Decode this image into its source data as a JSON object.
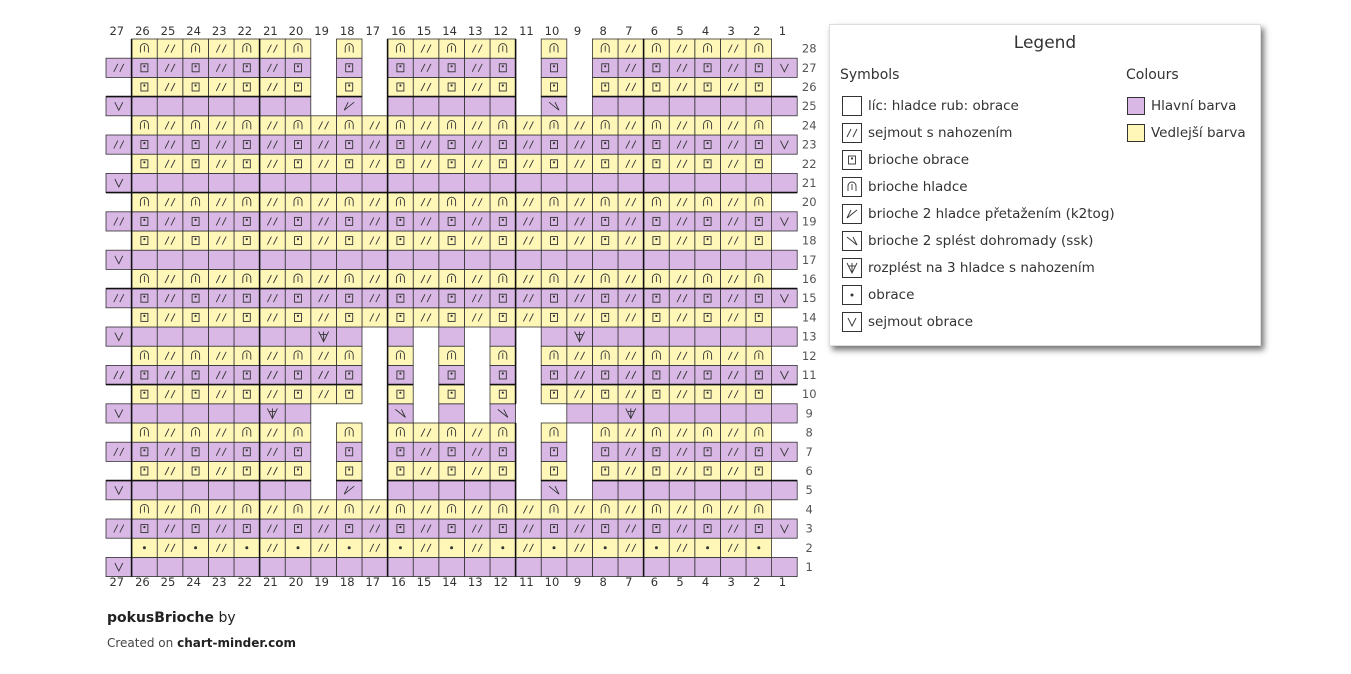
{
  "chart": {
    "columns": 27,
    "rows": 28,
    "empty_cells": [
      [
        28,
        1
      ],
      [
        28,
        27
      ],
      [
        28,
        9
      ],
      [
        28,
        11
      ],
      [
        28,
        17
      ],
      [
        28,
        19
      ],
      [
        27,
        9
      ],
      [
        27,
        11
      ],
      [
        27,
        17
      ],
      [
        27,
        19
      ],
      [
        26,
        1
      ],
      [
        26,
        27
      ],
      [
        26,
        9
      ],
      [
        26,
        11
      ],
      [
        26,
        17
      ],
      [
        26,
        19
      ],
      [
        25,
        9
      ],
      [
        25,
        11
      ],
      [
        25,
        17
      ],
      [
        25,
        19
      ],
      [
        24,
        1
      ],
      [
        24,
        27
      ],
      [
        22,
        1
      ],
      [
        22,
        27
      ],
      [
        20,
        1
      ],
      [
        20,
        27
      ],
      [
        18,
        1
      ],
      [
        18,
        27
      ],
      [
        16,
        1
      ],
      [
        16,
        27
      ],
      [
        14,
        1
      ],
      [
        14,
        27
      ],
      [
        13,
        11
      ],
      [
        13,
        13
      ],
      [
        13,
        15
      ],
      [
        13,
        17
      ],
      [
        12,
        1
      ],
      [
        12,
        27
      ],
      [
        12,
        11
      ],
      [
        12,
        13
      ],
      [
        12,
        15
      ],
      [
        12,
        17
      ],
      [
        11,
        11
      ],
      [
        11,
        13
      ],
      [
        11,
        15
      ],
      [
        11,
        17
      ],
      [
        10,
        1
      ],
      [
        10,
        27
      ],
      [
        10,
        11
      ],
      [
        10,
        13
      ],
      [
        10,
        15
      ],
      [
        10,
        17
      ],
      [
        9,
        10
      ],
      [
        9,
        11
      ],
      [
        9,
        13
      ],
      [
        9,
        15
      ],
      [
        9,
        17
      ],
      [
        9,
        18
      ],
      [
        9,
        19
      ],
      [
        8,
        1
      ],
      [
        8,
        27
      ],
      [
        8,
        9
      ],
      [
        8,
        11
      ],
      [
        8,
        17
      ],
      [
        8,
        19
      ],
      [
        7,
        9
      ],
      [
        7,
        11
      ],
      [
        7,
        17
      ],
      [
        7,
        19
      ],
      [
        6,
        1
      ],
      [
        6,
        27
      ],
      [
        6,
        9
      ],
      [
        6,
        11
      ],
      [
        6,
        17
      ],
      [
        6,
        19
      ],
      [
        5,
        9
      ],
      [
        5,
        11
      ],
      [
        5,
        17
      ],
      [
        5,
        19
      ],
      [
        4,
        1
      ],
      [
        4,
        27
      ],
      [
        2,
        1
      ],
      [
        2,
        27
      ]
    ],
    "special_cells": [
      {
        "row": 25,
        "col": 18,
        "symbol": "k2tog"
      },
      {
        "row": 25,
        "col": 10,
        "symbol": "ssk"
      },
      {
        "row": 13,
        "col": 19,
        "symbol": "inc3"
      },
      {
        "row": 13,
        "col": 9,
        "symbol": "inc3"
      },
      {
        "row": 9,
        "col": 21,
        "symbol": "inc3"
      },
      {
        "row": 9,
        "col": 16,
        "symbol": "ssk"
      },
      {
        "row": 9,
        "col": 12,
        "symbol": "ssk"
      },
      {
        "row": 9,
        "col": 7,
        "symbol": "inc3"
      },
      {
        "row": 5,
        "col": 18,
        "symbol": "k2tog"
      },
      {
        "row": 5,
        "col": 10,
        "symbol": "ssk"
      }
    ],
    "row_numbers_right": [
      28,
      27,
      26,
      25,
      24,
      23,
      22,
      21,
      20,
      19,
      18,
      17,
      16,
      15,
      14,
      13,
      12,
      11,
      10,
      9,
      8,
      7,
      6,
      5,
      4,
      3,
      2,
      1
    ],
    "column_numbers": [
      27,
      26,
      25,
      24,
      23,
      22,
      21,
      20,
      19,
      18,
      17,
      16,
      15,
      14,
      13,
      12,
      11,
      10,
      9,
      8,
      7,
      6,
      5,
      4,
      3,
      2,
      1
    ]
  },
  "colors": {
    "main": "#d9b8e6",
    "contrast": "#fff7b8",
    "line": "#333333",
    "thick_line": "#111111"
  },
  "legend": {
    "title": "Legend",
    "symbols_heading": "Symbols",
    "colours_heading": "Colours",
    "symbols": [
      {
        "icon": "blank",
        "label": "líc: hladce rub: obrace"
      },
      {
        "icon": "slip-yo",
        "label": "sejmout s nahozením"
      },
      {
        "icon": "brioche-purl",
        "label": "brioche obrace"
      },
      {
        "icon": "brioche-knit",
        "label": "brioche hladce"
      },
      {
        "icon": "k2tog",
        "label": "brioche 2 hladce přetažením (k2tog)"
      },
      {
        "icon": "ssk",
        "label": "brioche 2 splést dohromady (ssk)"
      },
      {
        "icon": "inc3",
        "label": "rozplést na 3 hladce s nahozením"
      },
      {
        "icon": "purl",
        "label": "obrace"
      },
      {
        "icon": "slip-purl",
        "label": "sejmout obrace"
      }
    ],
    "colours": [
      {
        "swatch": "#d9b8e6",
        "label": "Hlavní barva"
      },
      {
        "swatch": "#fff7b8",
        "label": "Vedlejší barva"
      }
    ]
  },
  "footer": {
    "title": "pokusBrioche",
    "by": " by",
    "created_prefix": "Created on ",
    "site": "chart-minder.com"
  }
}
